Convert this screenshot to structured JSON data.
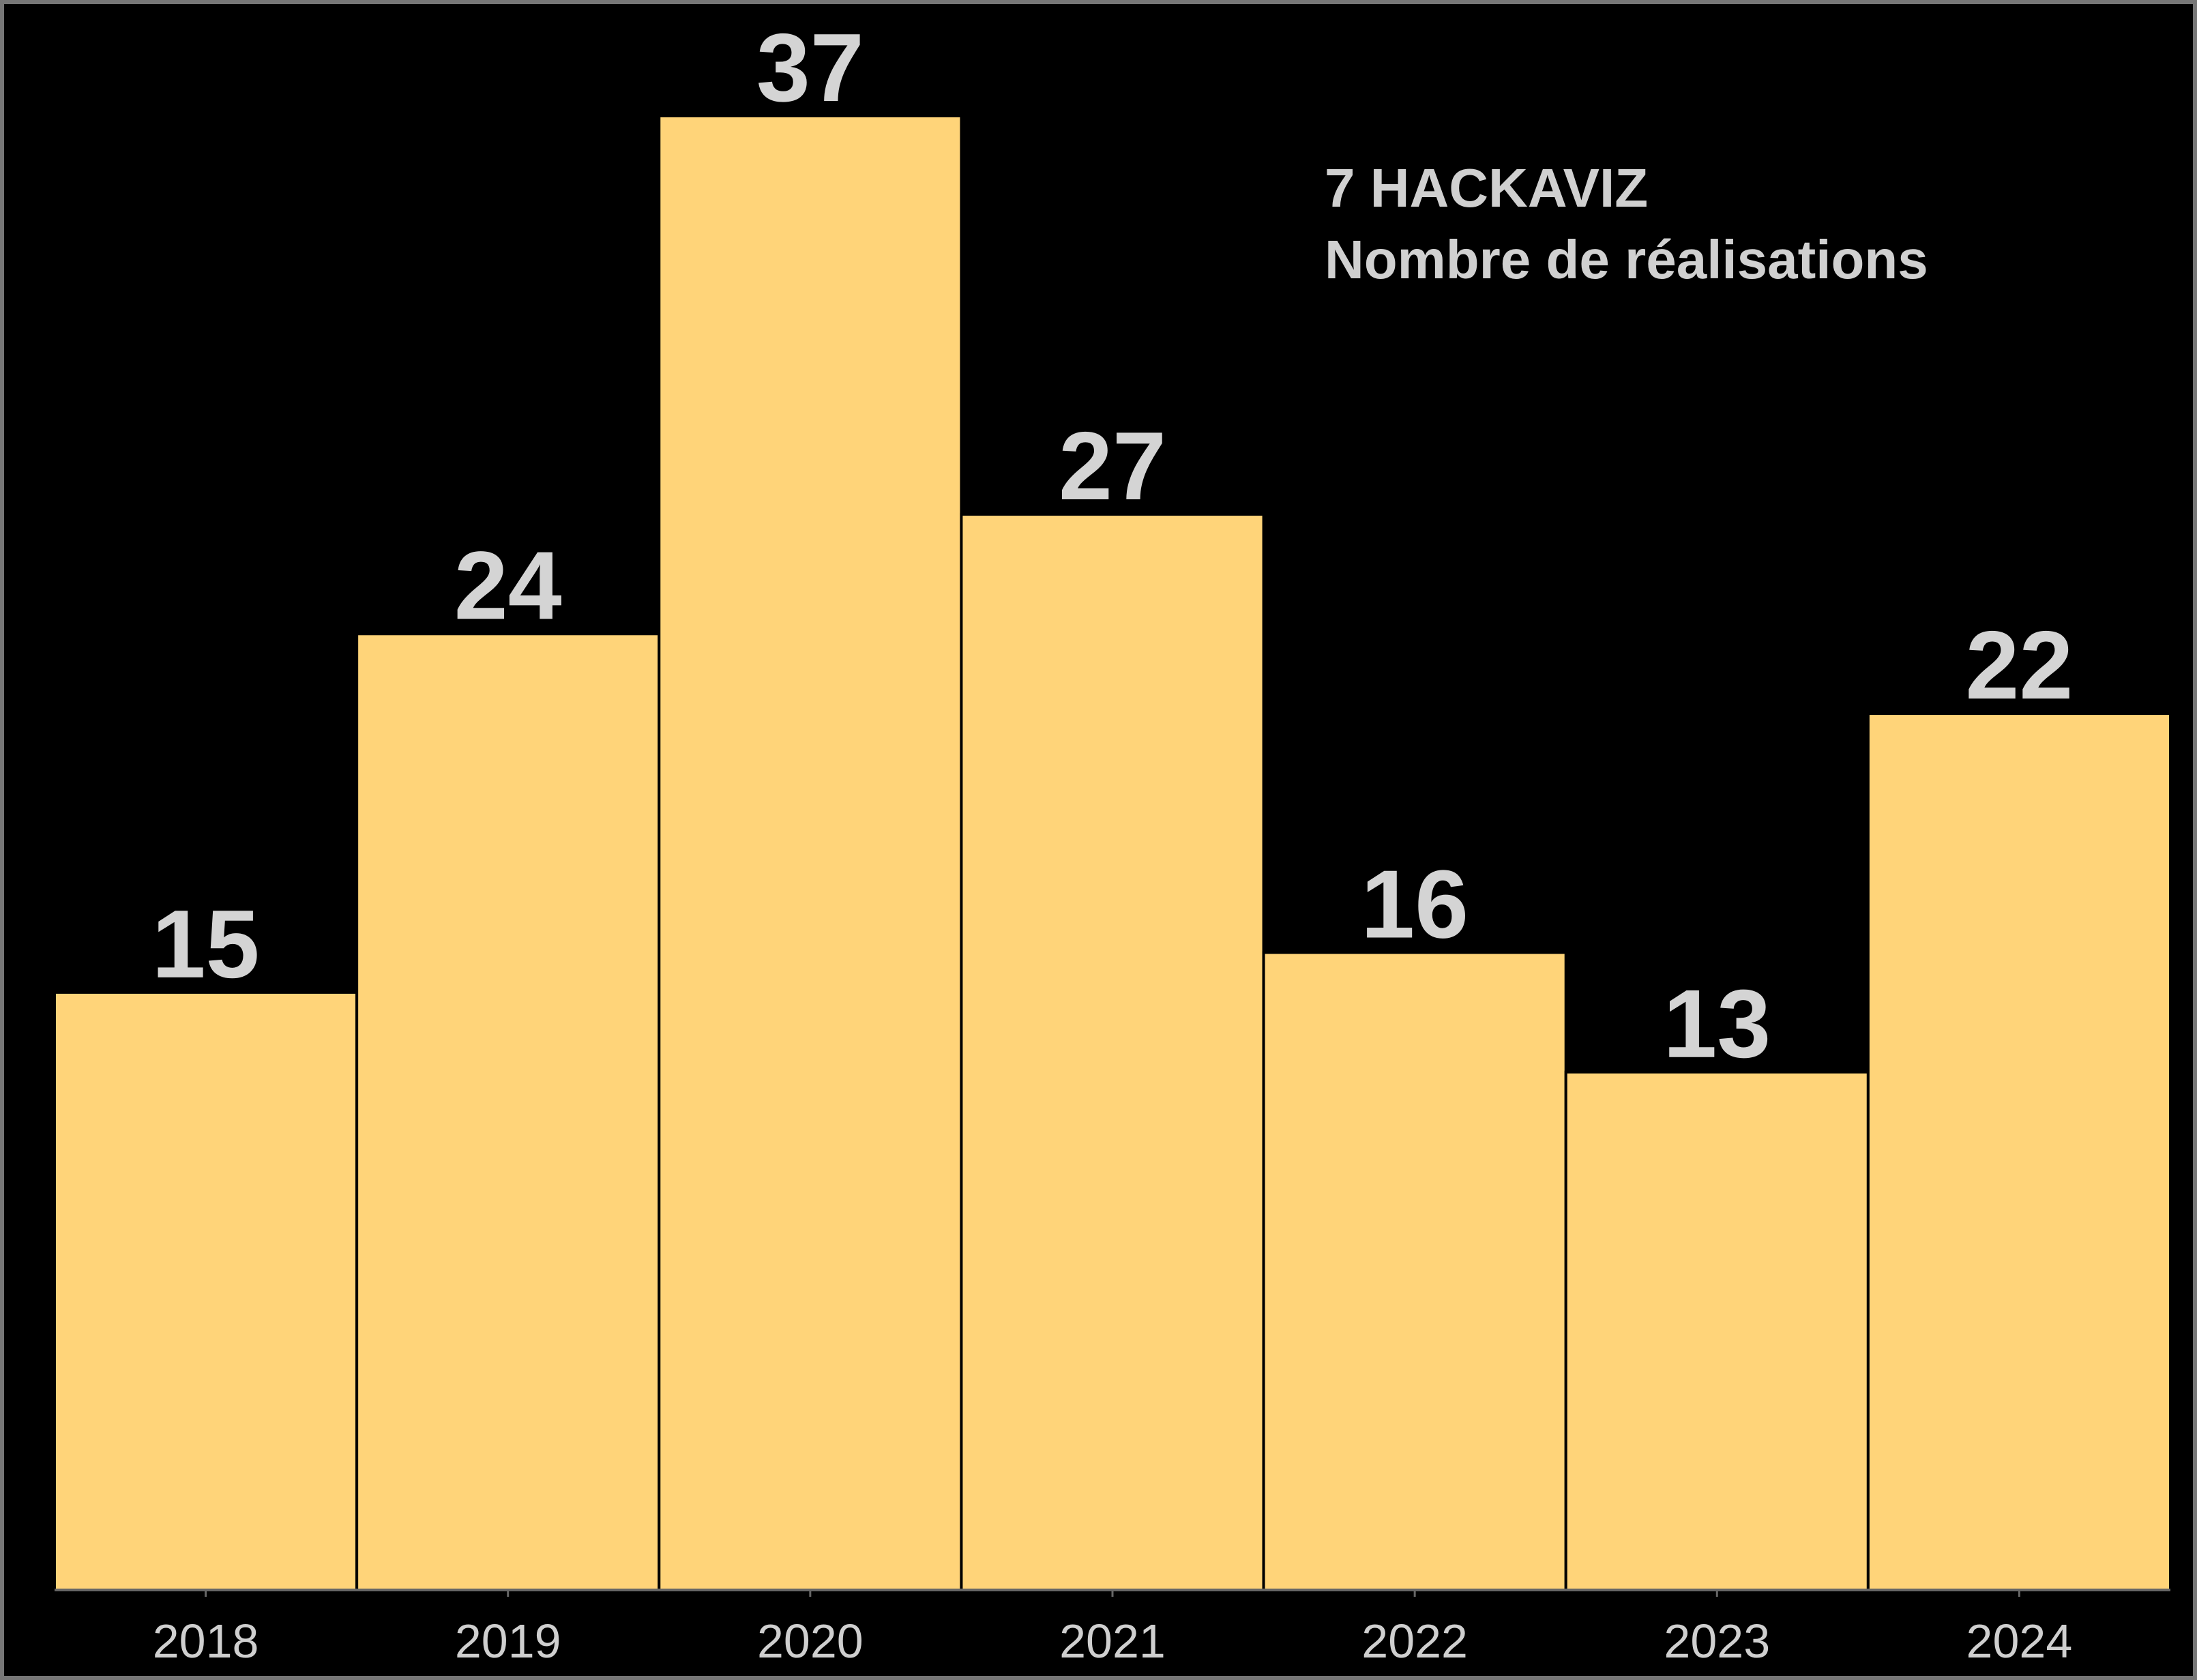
{
  "chart_data": {
    "type": "bar",
    "title": "7 HACKAVIZ",
    "subtitle": "Nombre de réalisations",
    "categories": [
      "2018",
      "2019",
      "2020",
      "2021",
      "2022",
      "2023",
      "2024"
    ],
    "values": [
      15,
      24,
      37,
      27,
      16,
      13,
      22
    ],
    "xlabel": "",
    "ylabel": "",
    "ylim": [
      0,
      37
    ],
    "grid": false,
    "legend": "none",
    "bar_color": "#FFD479",
    "background_color": "#000000",
    "text_color": "#D4D4D4"
  }
}
